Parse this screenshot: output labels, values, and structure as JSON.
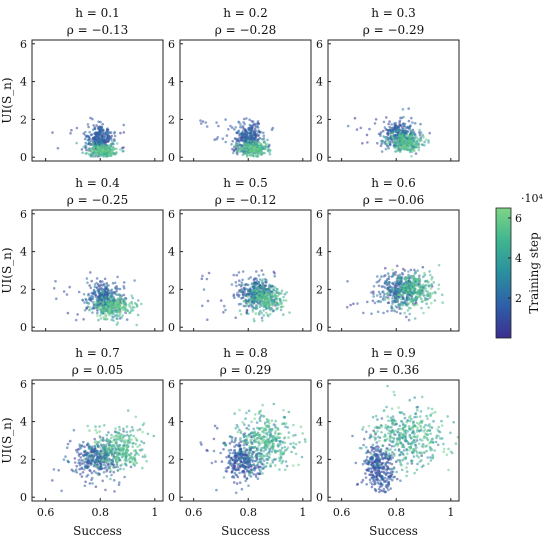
{
  "chart_data": {
    "type": "scatter",
    "x_axis_label": "Success",
    "y_axis_label": "UI(S_n)",
    "colorbar_label": "Training step",
    "colorbar_exponent": "·10⁴",
    "colorbar_ticks": [
      2,
      4,
      6
    ],
    "colorbar_range": [
      0,
      6.5
    ],
    "xlim": [
      0.55,
      1.03
    ],
    "ylim": [
      -0.2,
      6.2
    ],
    "x_ticks": [
      "0.6",
      "0.8",
      "1"
    ],
    "y_ticks": [
      "0",
      "2",
      "4",
      "6"
    ],
    "colormap": [
      "#3a2f8f",
      "#2f5fa8",
      "#2a8fa0",
      "#3fb58f",
      "#7fd485"
    ],
    "panels": [
      {
        "h_text": "h = 0.1",
        "rho_text": "ρ = −0.13",
        "h": 0.1,
        "rho": -0.13,
        "clusters": [
          {
            "cx": 0.8,
            "cy": 0.95,
            "sx": 0.022,
            "sy": 0.38,
            "t": [
              0.0,
              2.5
            ],
            "n": 280
          },
          {
            "cx": 0.81,
            "cy": 0.35,
            "sx": 0.025,
            "sy": 0.18,
            "t": [
              3.0,
              6.4
            ],
            "n": 240
          }
        ]
      },
      {
        "h_text": "h = 0.2",
        "rho_text": "ρ = −0.28",
        "h": 0.2,
        "rho": -0.28,
        "clusters": [
          {
            "cx": 0.8,
            "cy": 1.05,
            "sx": 0.025,
            "sy": 0.38,
            "t": [
              0.0,
              2.5
            ],
            "n": 280
          },
          {
            "cx": 0.82,
            "cy": 0.45,
            "sx": 0.028,
            "sy": 0.2,
            "t": [
              3.0,
              6.4
            ],
            "n": 240
          }
        ]
      },
      {
        "h_text": "h = 0.3",
        "rho_text": "ρ = −0.29",
        "h": 0.3,
        "rho": -0.29,
        "clusters": [
          {
            "cx": 0.81,
            "cy": 1.2,
            "sx": 0.03,
            "sy": 0.35,
            "t": [
              0.0,
              2.8
            ],
            "n": 280
          },
          {
            "cx": 0.84,
            "cy": 0.8,
            "sx": 0.03,
            "sy": 0.25,
            "t": [
              3.0,
              6.4
            ],
            "n": 250
          }
        ]
      },
      {
        "h_text": "h = 0.4",
        "rho_text": "ρ = −0.25",
        "h": 0.4,
        "rho": -0.25,
        "clusters": [
          {
            "cx": 0.81,
            "cy": 1.6,
            "sx": 0.032,
            "sy": 0.4,
            "t": [
              0.0,
              3.0
            ],
            "n": 290
          },
          {
            "cx": 0.85,
            "cy": 1.05,
            "sx": 0.035,
            "sy": 0.3,
            "t": [
              3.2,
              6.4
            ],
            "n": 260
          }
        ]
      },
      {
        "h_text": "h = 0.5",
        "rho_text": "ρ = −0.12",
        "h": 0.5,
        "rho": -0.12,
        "clusters": [
          {
            "cx": 0.83,
            "cy": 1.8,
            "sx": 0.035,
            "sy": 0.4,
            "t": [
              0.0,
              3.0
            ],
            "n": 290
          },
          {
            "cx": 0.86,
            "cy": 1.5,
            "sx": 0.035,
            "sy": 0.35,
            "t": [
              3.2,
              6.4
            ],
            "n": 270
          }
        ]
      },
      {
        "h_text": "h = 0.6",
        "rho_text": "ρ = −0.06",
        "h": 0.6,
        "rho": -0.06,
        "clusters": [
          {
            "cx": 0.81,
            "cy": 2.0,
            "sx": 0.04,
            "sy": 0.45,
            "t": [
              0.0,
              3.0
            ],
            "n": 300
          },
          {
            "cx": 0.86,
            "cy": 2.0,
            "sx": 0.04,
            "sy": 0.5,
            "t": [
              3.2,
              6.4
            ],
            "n": 290
          }
        ]
      },
      {
        "h_text": "h = 0.7",
        "rho_text": "ρ = 0.05",
        "h": 0.7,
        "rho": 0.05,
        "clusters": [
          {
            "cx": 0.79,
            "cy": 2.0,
            "sx": 0.04,
            "sy": 0.45,
            "t": [
              0.0,
              2.8
            ],
            "n": 300
          },
          {
            "cx": 0.87,
            "cy": 2.6,
            "sx": 0.045,
            "sy": 0.6,
            "t": [
              3.0,
              6.4
            ],
            "n": 320
          }
        ]
      },
      {
        "h_text": "h = 0.8",
        "rho_text": "ρ = 0.29",
        "h": 0.8,
        "rho": 0.29,
        "clusters": [
          {
            "cx": 0.78,
            "cy": 2.0,
            "sx": 0.035,
            "sy": 0.5,
            "t": [
              0.0,
              2.5
            ],
            "n": 300
          },
          {
            "cx": 0.87,
            "cy": 3.0,
            "sx": 0.055,
            "sy": 0.7,
            "t": [
              2.8,
              6.4
            ],
            "n": 360
          }
        ]
      },
      {
        "h_text": "h = 0.9",
        "rho_text": "ρ = 0.36",
        "h": 0.9,
        "rho": 0.36,
        "clusters": [
          {
            "cx": 0.74,
            "cy": 1.6,
            "sx": 0.03,
            "sy": 0.6,
            "t": [
              0.0,
              2.3
            ],
            "n": 300
          },
          {
            "cx": 0.85,
            "cy": 3.2,
            "sx": 0.07,
            "sy": 0.8,
            "t": [
              2.5,
              6.4
            ],
            "n": 400
          }
        ]
      }
    ]
  }
}
